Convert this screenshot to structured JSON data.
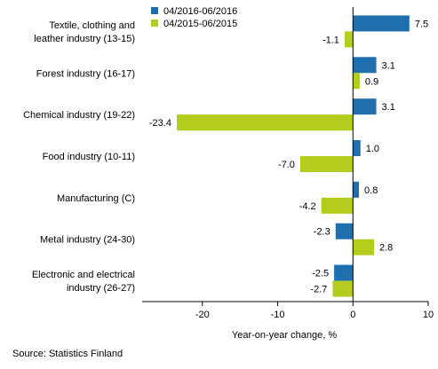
{
  "chart_data": {
    "type": "bar",
    "orientation": "horizontal",
    "categories": [
      [
        "Textile, clothing and",
        "leather industry (13-15)"
      ],
      [
        "Forest industry (16-17)"
      ],
      [
        "Chemical industry (19-22)"
      ],
      [
        "Food industry (10-11)"
      ],
      [
        "Manufacturing (C)"
      ],
      [
        "Metal industry (24-30)"
      ],
      [
        "Electronic and electrical",
        "industry (26-27)"
      ]
    ],
    "series": [
      {
        "name": "04/2016-06/2016",
        "color": "#1F6FAF",
        "values": [
          7.5,
          3.1,
          3.1,
          1.0,
          0.8,
          -2.3,
          -2.5
        ],
        "labels": [
          "7.5",
          "3.1",
          "3.1",
          "1.0",
          "0.8",
          "-2.3",
          "-2.5"
        ]
      },
      {
        "name": "04/2015-06/2015",
        "color": "#B4CC1E",
        "values": [
          -1.1,
          0.9,
          -23.4,
          -7.0,
          -4.2,
          2.8,
          -2.7
        ],
        "labels": [
          "-1.1",
          "0.9",
          "-23.4",
          "-7.0",
          "-4.2",
          "2.8",
          "-2.7"
        ]
      }
    ],
    "xlim": [
      -28,
      10
    ],
    "xticks": [
      -20,
      -10,
      0,
      10
    ],
    "xtick_labels": [
      "-20",
      "-10",
      "0",
      "10"
    ],
    "xlabel": "Year-on-year change, %",
    "legend_position": "top",
    "grid": false
  },
  "source": "Source: Statistics Finland"
}
